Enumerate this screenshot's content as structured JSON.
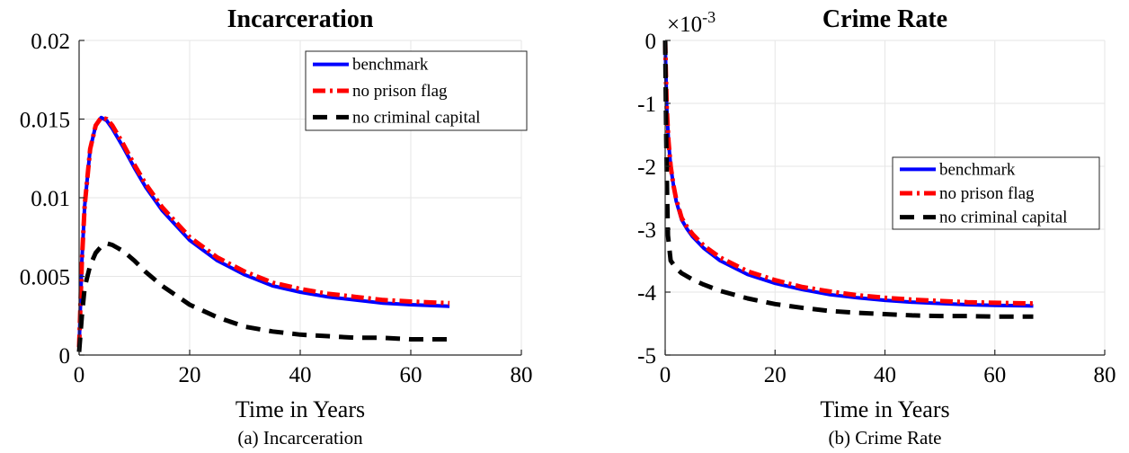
{
  "chart_data": [
    {
      "type": "line",
      "title": "Incarceration",
      "caption": "(a) Incarceration",
      "xlabel": "Time in Years",
      "ylabel": "",
      "xlim": [
        0,
        80
      ],
      "ylim": [
        0,
        0.02
      ],
      "xticks": [
        0,
        20,
        40,
        60,
        80
      ],
      "yticks": [
        0,
        0.005,
        0.01,
        0.015,
        0.02
      ],
      "xtick_labels": [
        "0",
        "20",
        "40",
        "60",
        "80"
      ],
      "ytick_labels": [
        "0",
        "0.005",
        "0.01",
        "0.015",
        "0.02"
      ],
      "grid": true,
      "legend_position": "top-right",
      "series": [
        {
          "name": "benchmark",
          "color": "#0000ff",
          "style": "solid",
          "x": [
            0,
            0.5,
            1,
            2,
            3,
            4,
            5,
            6,
            8,
            10,
            12,
            15,
            20,
            25,
            30,
            35,
            40,
            45,
            50,
            55,
            60,
            67
          ],
          "y": [
            0.0005,
            0.006,
            0.0095,
            0.0131,
            0.0146,
            0.0151,
            0.0149,
            0.0144,
            0.0132,
            0.0119,
            0.0107,
            0.0092,
            0.0073,
            0.006,
            0.0051,
            0.0044,
            0.004,
            0.0037,
            0.0035,
            0.0033,
            0.0032,
            0.0031
          ]
        },
        {
          "name": "no prison flag",
          "color": "#ff0000",
          "style": "dashdot",
          "x": [
            0,
            0.5,
            1,
            2,
            3,
            4,
            5,
            6,
            8,
            10,
            12,
            15,
            20,
            25,
            30,
            35,
            40,
            45,
            50,
            55,
            60,
            67
          ],
          "y": [
            0.0005,
            0.006,
            0.0095,
            0.0131,
            0.0146,
            0.0151,
            0.015,
            0.0146,
            0.0134,
            0.0121,
            0.0109,
            0.0094,
            0.0075,
            0.0062,
            0.0053,
            0.0046,
            0.0042,
            0.0039,
            0.0037,
            0.0035,
            0.0034,
            0.0033
          ]
        },
        {
          "name": "no criminal capital",
          "color": "#000000",
          "style": "dashed",
          "x": [
            0,
            0.5,
            1,
            2,
            3,
            4,
            5,
            6,
            7,
            8,
            10,
            12,
            15,
            20,
            25,
            30,
            35,
            40,
            45,
            50,
            55,
            60,
            67
          ],
          "y": [
            0.0002,
            0.0025,
            0.0043,
            0.0057,
            0.0065,
            0.0069,
            0.0071,
            0.007,
            0.0068,
            0.0066,
            0.006,
            0.0053,
            0.0044,
            0.0032,
            0.0024,
            0.0018,
            0.0015,
            0.0013,
            0.0012,
            0.0011,
            0.0011,
            0.001,
            0.001
          ]
        }
      ]
    },
    {
      "type": "line",
      "title": "Crime Rate",
      "caption": "(b) Crime Rate",
      "xlabel": "Time in Years",
      "ylabel": "",
      "exponent_label": "×10",
      "exponent_power": "-3",
      "xlim": [
        0,
        80
      ],
      "ylim": [
        -5,
        0
      ],
      "xticks": [
        0,
        20,
        40,
        60,
        80
      ],
      "yticks": [
        -5,
        -4,
        -3,
        -2,
        -1,
        0
      ],
      "xtick_labels": [
        "0",
        "20",
        "40",
        "60",
        "80"
      ],
      "ytick_labels": [
        "-5",
        "-4",
        "-3",
        "-2",
        "-1",
        "0"
      ],
      "grid": true,
      "legend_position": "right",
      "series": [
        {
          "name": "benchmark",
          "color": "#0000ff",
          "style": "solid",
          "x": [
            0,
            0.15,
            0.3,
            0.6,
            1,
            1.5,
            2,
            3,
            4,
            5,
            7,
            10,
            15,
            20,
            25,
            30,
            35,
            40,
            45,
            50,
            55,
            60,
            67
          ],
          "y": [
            0,
            -0.6,
            -1.1,
            -1.6,
            -2.0,
            -2.3,
            -2.55,
            -2.85,
            -3.0,
            -3.12,
            -3.3,
            -3.5,
            -3.72,
            -3.86,
            -3.96,
            -4.04,
            -4.09,
            -4.13,
            -4.16,
            -4.18,
            -4.2,
            -4.21,
            -4.22
          ]
        },
        {
          "name": "no prison flag",
          "color": "#ff0000",
          "style": "dashdot",
          "x": [
            0,
            0.15,
            0.3,
            0.6,
            1,
            1.5,
            2,
            3,
            4,
            5,
            7,
            10,
            15,
            20,
            25,
            30,
            35,
            40,
            45,
            50,
            55,
            60,
            67
          ],
          "y": [
            0,
            -0.6,
            -1.1,
            -1.6,
            -2.0,
            -2.3,
            -2.52,
            -2.82,
            -2.97,
            -3.08,
            -3.26,
            -3.45,
            -3.67,
            -3.81,
            -3.92,
            -3.99,
            -4.05,
            -4.09,
            -4.12,
            -4.14,
            -4.16,
            -4.17,
            -4.18
          ]
        },
        {
          "name": "no criminal capital",
          "color": "#000000",
          "style": "dashed",
          "x": [
            0,
            0.1,
            0.2,
            0.35,
            0.5,
            1,
            2,
            3,
            5,
            7,
            10,
            15,
            20,
            25,
            30,
            35,
            40,
            45,
            50,
            55,
            60,
            67
          ],
          "y": [
            0,
            -0.8,
            -1.6,
            -2.4,
            -3.1,
            -3.5,
            -3.62,
            -3.7,
            -3.8,
            -3.88,
            -3.98,
            -4.1,
            -4.19,
            -4.25,
            -4.3,
            -4.33,
            -4.35,
            -4.37,
            -4.38,
            -4.38,
            -4.39,
            -4.39
          ]
        }
      ]
    }
  ]
}
